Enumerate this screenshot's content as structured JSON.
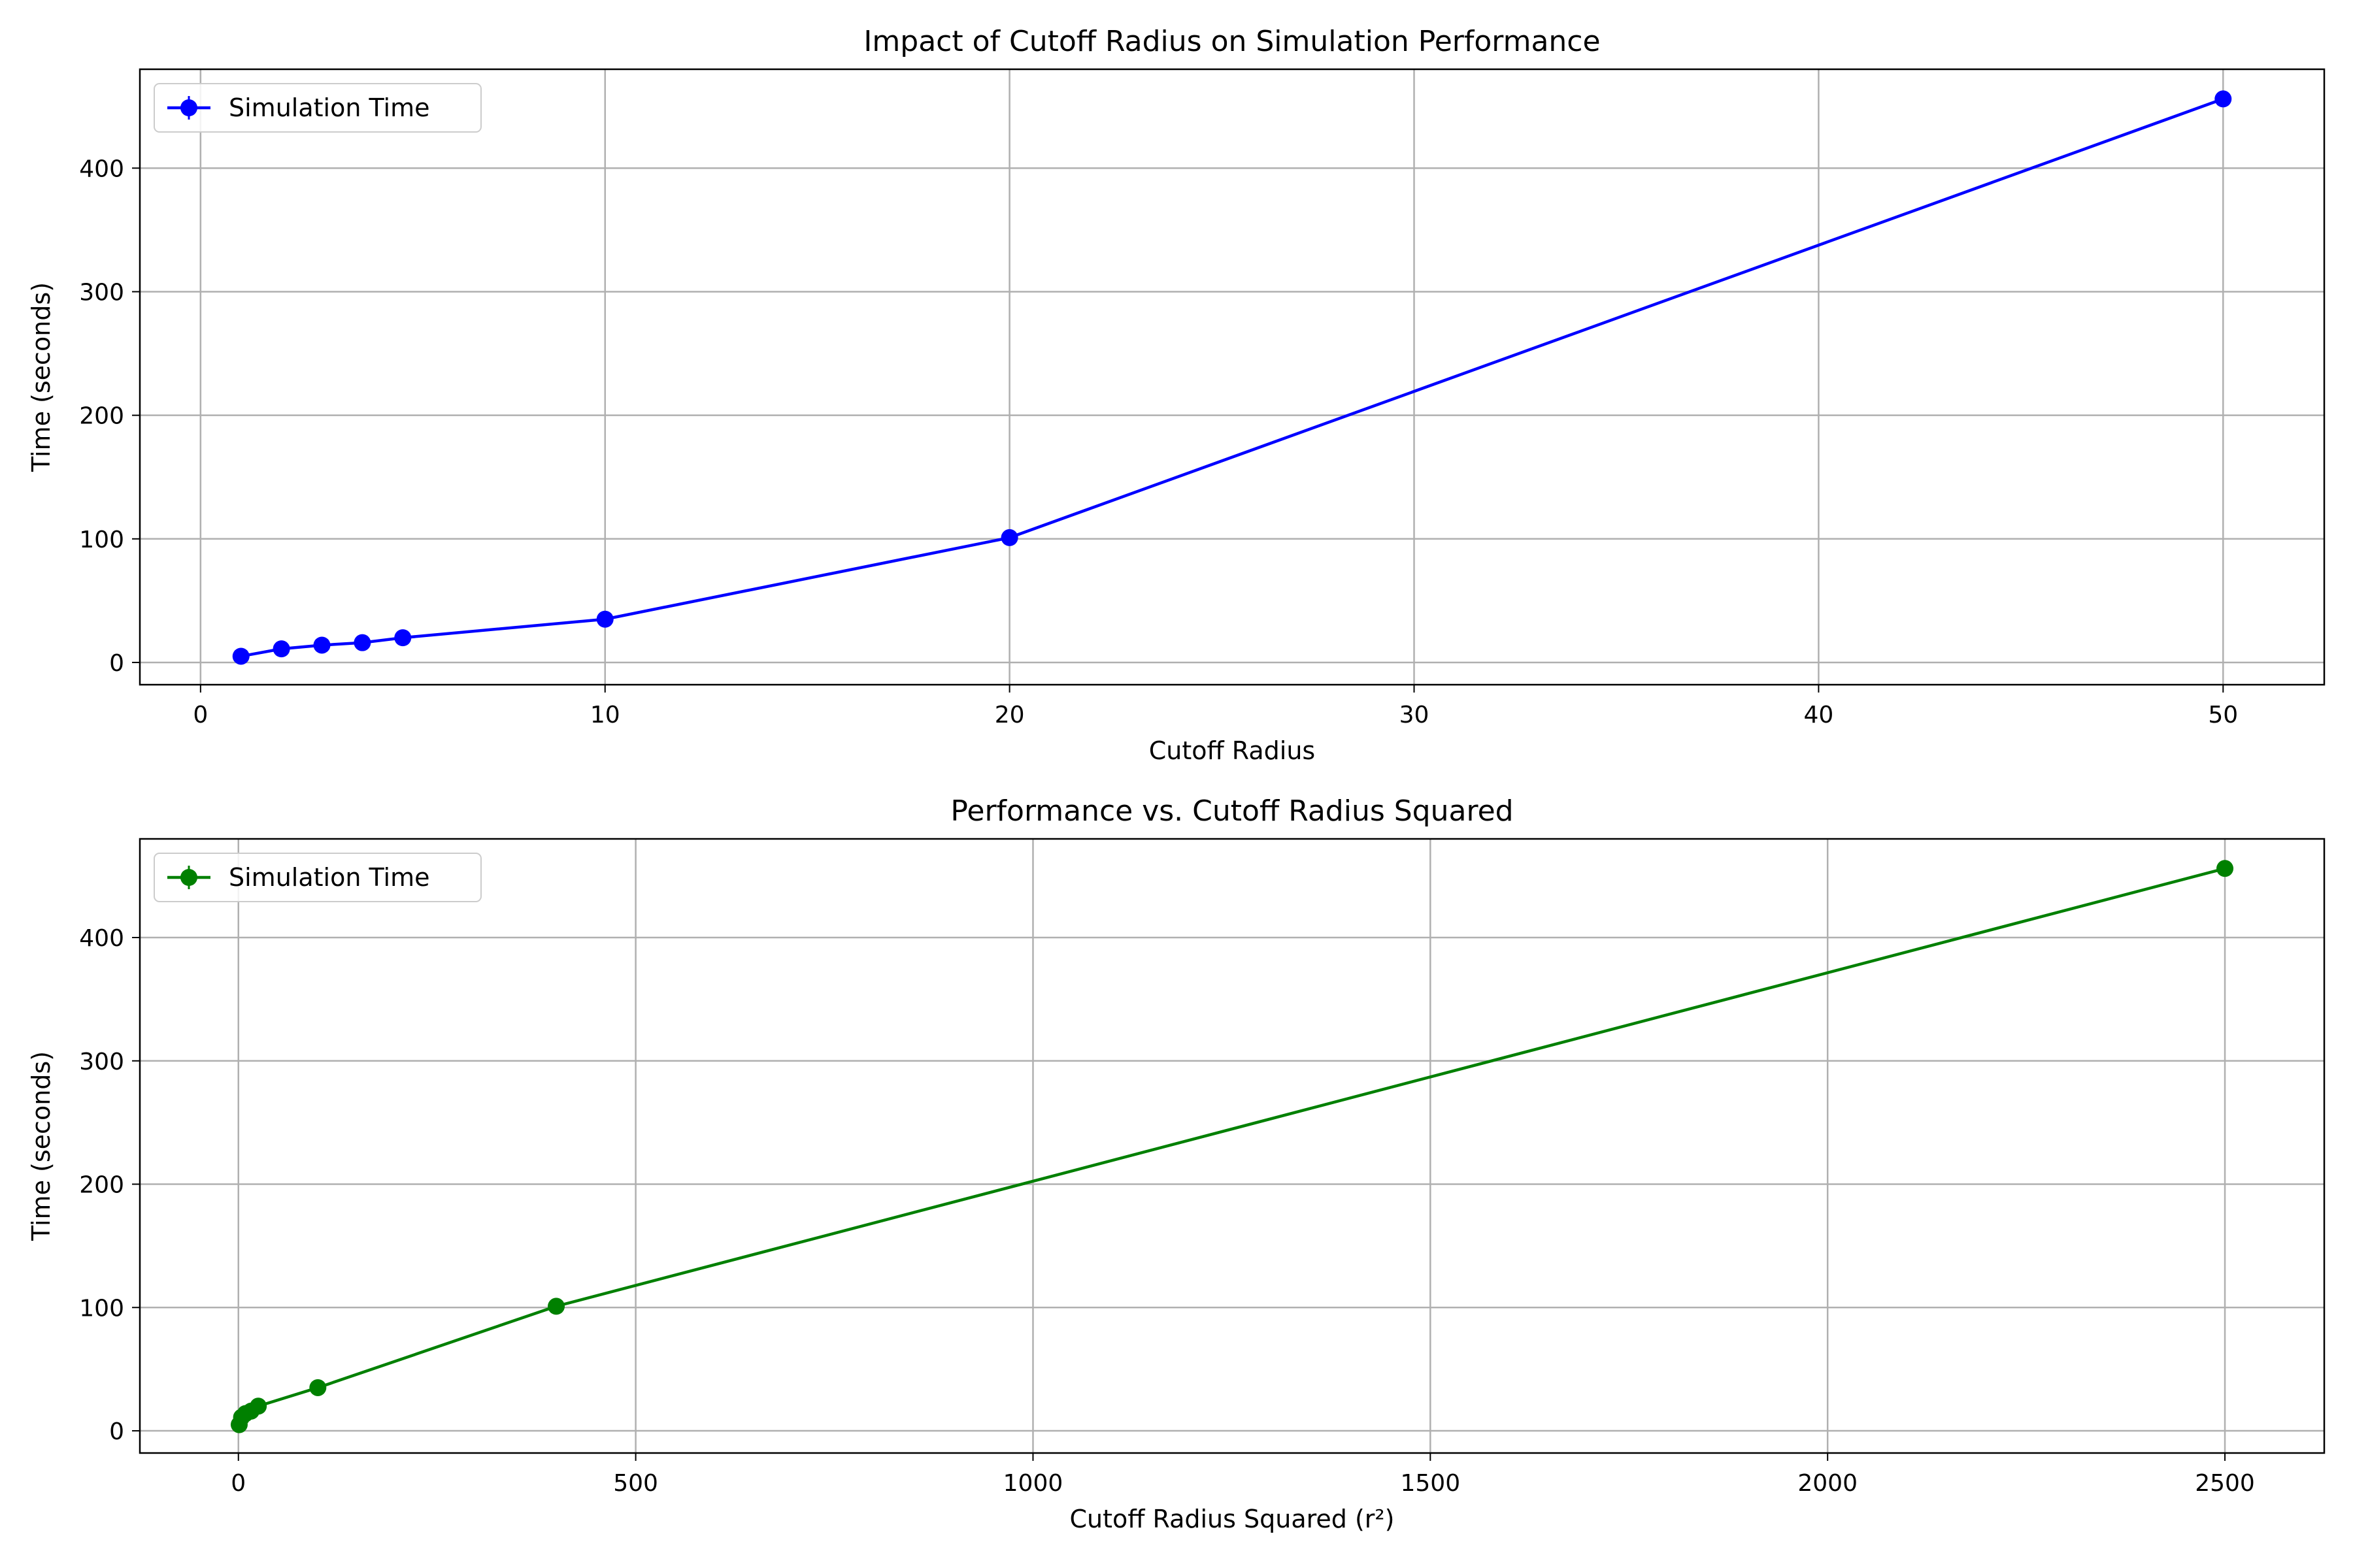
{
  "chart_data": [
    {
      "type": "line",
      "title": "Impact of Cutoff Radius on Simulation Performance",
      "xlabel": "Cutoff Radius",
      "ylabel": "Time (seconds)",
      "xlim": [
        -1.5,
        52.5
      ],
      "ylim": [
        -18,
        480
      ],
      "xticks": [
        0,
        10,
        20,
        30,
        40,
        50
      ],
      "yticks": [
        0,
        100,
        200,
        300,
        400
      ],
      "grid": true,
      "legend_position": "upper-left",
      "series": [
        {
          "name": "Simulation Time",
          "color": "#0000ff",
          "marker": "circle",
          "x": [
            1,
            2,
            3,
            4,
            5,
            10,
            20,
            50
          ],
          "y": [
            5,
            11,
            14,
            16,
            20,
            35,
            101,
            456
          ]
        }
      ]
    },
    {
      "type": "line",
      "title": "Performance vs. Cutoff Radius Squared",
      "xlabel": "Cutoff Radius Squared (r²)",
      "ylabel": "Time (seconds)",
      "xlim": [
        -124,
        2625
      ],
      "ylim": [
        -18,
        480
      ],
      "xticks": [
        0,
        500,
        1000,
        1500,
        2000,
        2500
      ],
      "yticks": [
        0,
        100,
        200,
        300,
        400
      ],
      "grid": true,
      "legend_position": "upper-left",
      "series": [
        {
          "name": "Simulation Time",
          "color": "#008000",
          "marker": "circle",
          "x": [
            1,
            4,
            9,
            16,
            25,
            100,
            400,
            2500
          ],
          "y": [
            5,
            11,
            14,
            16,
            20,
            35,
            101,
            456
          ]
        }
      ]
    }
  ]
}
